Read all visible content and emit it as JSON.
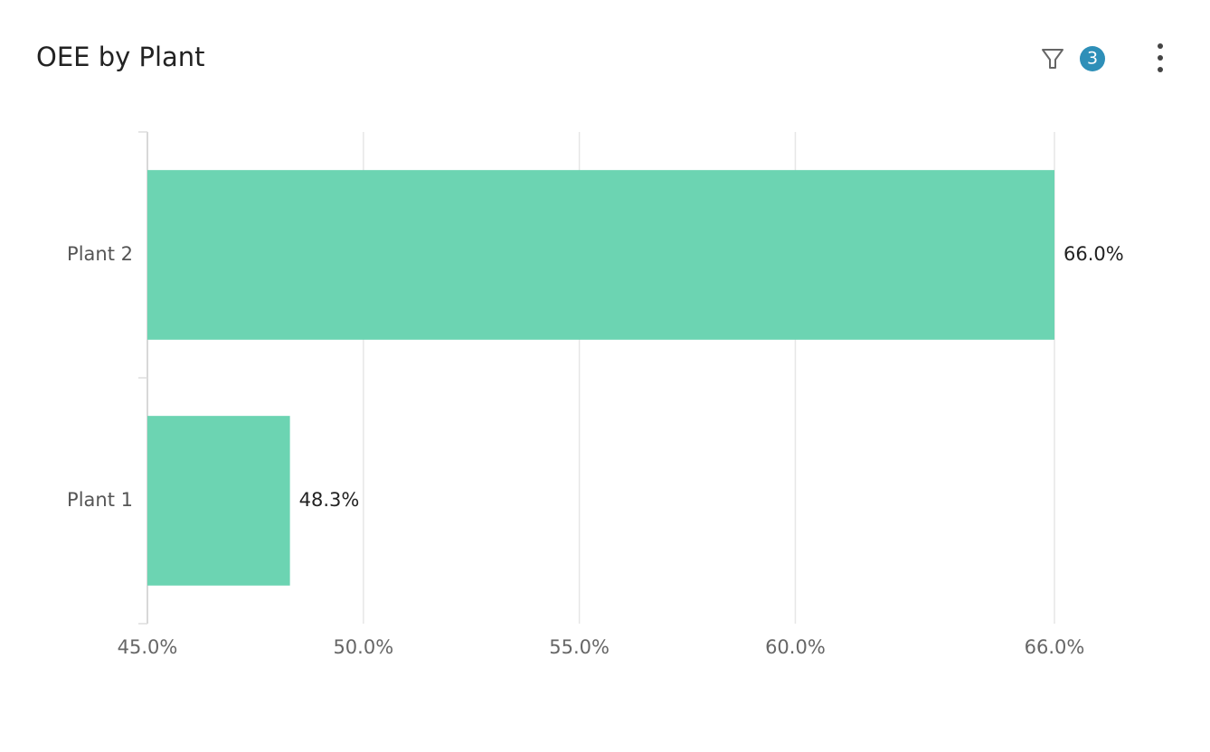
{
  "header": {
    "filter_count": "3"
  },
  "chart_data": {
    "type": "hbar",
    "title": "OEE by Plant",
    "categories": [
      "Plant 2",
      "Plant 1"
    ],
    "values": [
      66.0,
      48.3
    ],
    "value_labels": [
      "66.0%",
      "48.3%"
    ],
    "color": "#6cd4b2",
    "xlim": [
      45,
      66
    ],
    "xticks": [
      {
        "value": 45,
        "label": "45.0%"
      },
      {
        "value": 50,
        "label": "50.0%"
      },
      {
        "value": 55,
        "label": "55.0%"
      },
      {
        "value": 60,
        "label": "60.0%"
      },
      {
        "value": 66,
        "label": "66.0%"
      }
    ],
    "grid": true
  }
}
